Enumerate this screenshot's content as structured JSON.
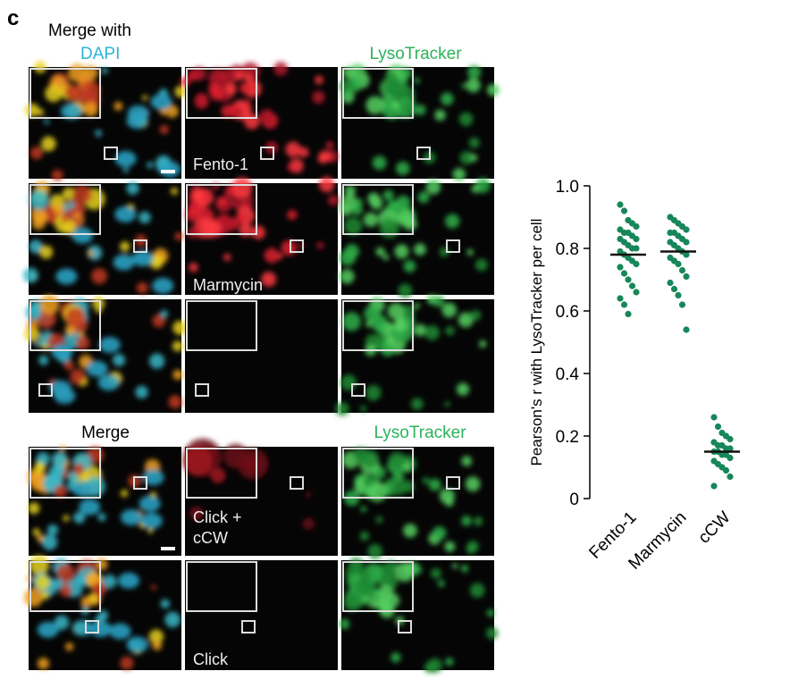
{
  "panel_label": "c",
  "headers": {
    "top_merge": "Merge with",
    "top_dapi": "DAPI",
    "top_lyso": "LysoTracker",
    "bottom_merge": "Merge",
    "bottom_lyso": "LysoTracker"
  },
  "row_labels": {
    "fento": "Fento-1",
    "marmycin": "Marmycin",
    "click_ccw": [
      "Click +",
      "cCW"
    ],
    "click": "Click"
  },
  "chart_data": {
    "type": "strip",
    "ylabel": "Pearson's r with LysoTracker per cell",
    "categories": [
      "Fento-1",
      "Marmycin",
      "cCW"
    ],
    "color": "#17875a",
    "values": [
      [
        0.94,
        0.92,
        0.89,
        0.88,
        0.87,
        0.86,
        0.85,
        0.85,
        0.84,
        0.83,
        0.83,
        0.82,
        0.81,
        0.8,
        0.8,
        0.79,
        0.78,
        0.77,
        0.76,
        0.75,
        0.74,
        0.72,
        0.7,
        0.68,
        0.66,
        0.64,
        0.62,
        0.59
      ],
      [
        0.9,
        0.89,
        0.88,
        0.87,
        0.86,
        0.85,
        0.85,
        0.84,
        0.83,
        0.82,
        0.82,
        0.81,
        0.8,
        0.79,
        0.78,
        0.77,
        0.76,
        0.75,
        0.73,
        0.71,
        0.69,
        0.67,
        0.65,
        0.62,
        0.54
      ],
      [
        0.26,
        0.23,
        0.21,
        0.2,
        0.19,
        0.18,
        0.17,
        0.17,
        0.16,
        0.16,
        0.15,
        0.15,
        0.14,
        0.14,
        0.13,
        0.12,
        0.11,
        0.1,
        0.09,
        0.07,
        0.04
      ]
    ],
    "means": [
      0.78,
      0.79,
      0.15
    ],
    "ylim": [
      0,
      1.0
    ],
    "yticks": [
      0,
      0.2,
      0.4,
      0.6,
      0.8,
      {
        "value": 1.0,
        "label": "1.0"
      }
    ]
  }
}
